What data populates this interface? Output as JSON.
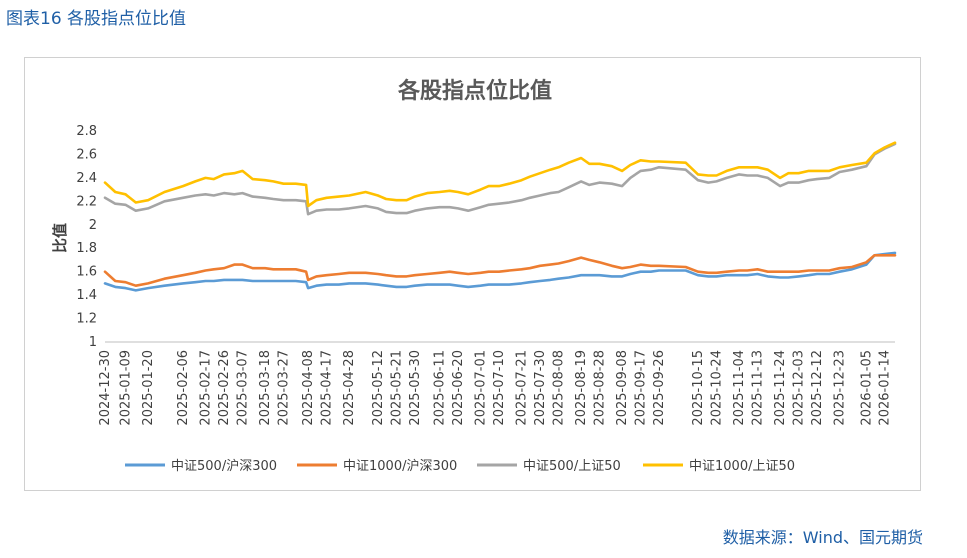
{
  "figure_caption": "图表16  各股指点位比值",
  "source": "数据来源：Wind、国元期货",
  "colors": {
    "series": [
      "#5b9bd5",
      "#ed7d31",
      "#a5a5a5",
      "#ffc000"
    ],
    "caption": "#1f5fa6"
  },
  "chart_data": {
    "type": "line",
    "title": "各股指点位比值",
    "xlabel": "",
    "ylabel": "比值",
    "ylim": [
      1,
      2.8
    ],
    "yticks": [
      "1",
      "1.2",
      "1.4",
      "1.6",
      "1.8",
      "2",
      "2.2",
      "2.4",
      "2.6",
      "2.8"
    ],
    "grid": false,
    "legend_position": "bottom",
    "x_tick_labels": [
      "2024-12-30",
      "2025-01-09",
      "2025-01-20",
      "2025-02-06",
      "2025-02-17",
      "2025-02-26",
      "2025-03-07",
      "2025-03-18",
      "2025-03-27",
      "2025-04-08",
      "2025-04-17",
      "2025-04-28",
      "2025-05-12",
      "2025-05-21",
      "2025-05-30",
      "2025-06-11",
      "2025-06-20",
      "2025-07-01",
      "2025-07-10",
      "2025-07-21",
      "2025-07-30",
      "2025-08-08",
      "2025-08-19",
      "2025-08-28",
      "2025-09-08",
      "2025-09-17",
      "2025-09-26",
      "2025-10-15",
      "2025-10-24",
      "2025-11-04",
      "2025-11-13",
      "2025-11-24",
      "2025-12-03",
      "2025-12-12",
      "2025-12-23",
      "2026-01-05",
      "2026-01-14"
    ],
    "x": [
      "2024-12-30",
      "2025-01-04",
      "2025-01-09",
      "2025-01-14",
      "2025-01-20",
      "2025-01-28",
      "2025-02-06",
      "2025-02-12",
      "2025-02-17",
      "2025-02-21",
      "2025-02-26",
      "2025-03-03",
      "2025-03-07",
      "2025-03-12",
      "2025-03-18",
      "2025-03-22",
      "2025-03-27",
      "2025-04-02",
      "2025-04-07",
      "2025-04-08",
      "2025-04-12",
      "2025-04-17",
      "2025-04-23",
      "2025-04-28",
      "2025-05-06",
      "2025-05-12",
      "2025-05-16",
      "2025-05-21",
      "2025-05-26",
      "2025-05-30",
      "2025-06-05",
      "2025-06-11",
      "2025-06-16",
      "2025-06-20",
      "2025-06-25",
      "2025-07-01",
      "2025-07-05",
      "2025-07-10",
      "2025-07-15",
      "2025-07-21",
      "2025-07-25",
      "2025-07-30",
      "2025-08-04",
      "2025-08-08",
      "2025-08-13",
      "2025-08-19",
      "2025-08-23",
      "2025-08-28",
      "2025-09-03",
      "2025-09-08",
      "2025-09-12",
      "2025-09-17",
      "2025-09-22",
      "2025-09-26",
      "2025-10-09",
      "2025-10-15",
      "2025-10-20",
      "2025-10-24",
      "2025-10-29",
      "2025-11-04",
      "2025-11-08",
      "2025-11-13",
      "2025-11-18",
      "2025-11-24",
      "2025-11-28",
      "2025-12-03",
      "2025-12-08",
      "2025-12-12",
      "2025-12-18",
      "2025-12-23",
      "2025-12-29",
      "2026-01-05",
      "2026-01-09",
      "2026-01-14",
      "2026-01-19"
    ],
    "series": [
      {
        "name": "中证500/沪深300",
        "values": [
          1.5,
          1.47,
          1.46,
          1.44,
          1.46,
          1.48,
          1.5,
          1.51,
          1.52,
          1.52,
          1.53,
          1.53,
          1.53,
          1.52,
          1.52,
          1.52,
          1.52,
          1.52,
          1.51,
          1.46,
          1.48,
          1.49,
          1.49,
          1.5,
          1.5,
          1.49,
          1.48,
          1.47,
          1.47,
          1.48,
          1.49,
          1.49,
          1.49,
          1.48,
          1.47,
          1.48,
          1.49,
          1.49,
          1.49,
          1.5,
          1.51,
          1.52,
          1.53,
          1.54,
          1.55,
          1.57,
          1.57,
          1.57,
          1.56,
          1.56,
          1.58,
          1.6,
          1.6,
          1.61,
          1.61,
          1.57,
          1.56,
          1.56,
          1.57,
          1.57,
          1.57,
          1.58,
          1.56,
          1.55,
          1.55,
          1.56,
          1.57,
          1.58,
          1.58,
          1.6,
          1.62,
          1.66,
          1.74,
          1.75,
          1.76
        ]
      },
      {
        "name": "中证1000/沪深300",
        "values": [
          1.6,
          1.52,
          1.51,
          1.48,
          1.5,
          1.54,
          1.57,
          1.59,
          1.61,
          1.62,
          1.63,
          1.66,
          1.66,
          1.63,
          1.63,
          1.62,
          1.62,
          1.62,
          1.6,
          1.53,
          1.56,
          1.57,
          1.58,
          1.59,
          1.59,
          1.58,
          1.57,
          1.56,
          1.56,
          1.57,
          1.58,
          1.59,
          1.6,
          1.59,
          1.58,
          1.59,
          1.6,
          1.6,
          1.61,
          1.62,
          1.63,
          1.65,
          1.66,
          1.67,
          1.69,
          1.72,
          1.7,
          1.68,
          1.65,
          1.63,
          1.64,
          1.66,
          1.65,
          1.65,
          1.64,
          1.6,
          1.59,
          1.59,
          1.6,
          1.61,
          1.61,
          1.62,
          1.6,
          1.6,
          1.6,
          1.6,
          1.61,
          1.61,
          1.61,
          1.63,
          1.64,
          1.68,
          1.74,
          1.74,
          1.74
        ]
      },
      {
        "name": "中证500/上证50",
        "values": [
          2.23,
          2.18,
          2.17,
          2.12,
          2.14,
          2.2,
          2.23,
          2.25,
          2.26,
          2.25,
          2.27,
          2.26,
          2.27,
          2.24,
          2.23,
          2.22,
          2.21,
          2.21,
          2.2,
          2.09,
          2.12,
          2.13,
          2.13,
          2.14,
          2.16,
          2.14,
          2.11,
          2.1,
          2.1,
          2.12,
          2.14,
          2.15,
          2.15,
          2.14,
          2.12,
          2.15,
          2.17,
          2.18,
          2.19,
          2.21,
          2.23,
          2.25,
          2.27,
          2.28,
          2.32,
          2.37,
          2.34,
          2.36,
          2.35,
          2.33,
          2.4,
          2.46,
          2.47,
          2.49,
          2.47,
          2.38,
          2.36,
          2.37,
          2.4,
          2.43,
          2.42,
          2.42,
          2.4,
          2.33,
          2.36,
          2.36,
          2.38,
          2.39,
          2.4,
          2.45,
          2.47,
          2.5,
          2.6,
          2.65,
          2.69
        ]
      },
      {
        "name": "中证1000/上证50",
        "values": [
          2.36,
          2.28,
          2.26,
          2.19,
          2.21,
          2.28,
          2.33,
          2.37,
          2.4,
          2.39,
          2.43,
          2.44,
          2.46,
          2.39,
          2.38,
          2.37,
          2.35,
          2.35,
          2.34,
          2.16,
          2.21,
          2.23,
          2.24,
          2.25,
          2.28,
          2.25,
          2.22,
          2.21,
          2.21,
          2.24,
          2.27,
          2.28,
          2.29,
          2.28,
          2.26,
          2.3,
          2.33,
          2.33,
          2.35,
          2.38,
          2.41,
          2.44,
          2.47,
          2.49,
          2.53,
          2.57,
          2.52,
          2.52,
          2.5,
          2.46,
          2.51,
          2.55,
          2.54,
          2.54,
          2.53,
          2.43,
          2.42,
          2.42,
          2.46,
          2.49,
          2.49,
          2.49,
          2.47,
          2.4,
          2.44,
          2.44,
          2.46,
          2.46,
          2.46,
          2.49,
          2.51,
          2.53,
          2.61,
          2.66,
          2.7
        ]
      }
    ]
  }
}
